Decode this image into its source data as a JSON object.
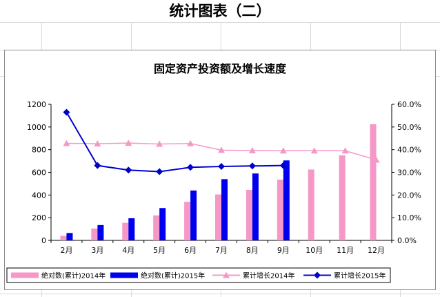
{
  "sheet": {
    "title": "统计图表（二）"
  },
  "colors": {
    "bar2014": "#f598c8",
    "bar2015": "#0000ee",
    "line2014": "#f598c8",
    "line2015": "#0000cc",
    "axis": "#000000"
  },
  "chart_data": {
    "type": "bar",
    "title": "固定资产投资额及增长速度",
    "categories": [
      "2月",
      "3月",
      "4月",
      "5月",
      "6月",
      "7月",
      "8月",
      "9月",
      "10月",
      "11月",
      "12月"
    ],
    "y_left": {
      "range": [
        0,
        1200
      ],
      "ticks": [
        "0",
        "200",
        "400",
        "600",
        "800",
        "1000",
        "1200"
      ]
    },
    "y_right": {
      "range": [
        0,
        60
      ],
      "ticks": [
        "0.0%",
        "10.0%",
        "20.0%",
        "30.0%",
        "40.0%",
        "50.0%",
        "60.0%"
      ]
    },
    "grid": false,
    "legend_position": "bottom",
    "series": [
      {
        "name": "绝对数(累计)2014年",
        "kind": "bar",
        "axis": "left",
        "values": [
          40,
          105,
          155,
          220,
          340,
          405,
          445,
          535,
          625,
          750,
          1025
        ]
      },
      {
        "name": "绝对数(累计)2015年",
        "kind": "bar",
        "axis": "left",
        "values": [
          65,
          135,
          195,
          285,
          440,
          540,
          590,
          705,
          null,
          null,
          null
        ]
      },
      {
        "name": "累计增长2014年",
        "kind": "line",
        "marker": "triangle",
        "axis": "right",
        "values": [
          42.8,
          42.6,
          42.9,
          42.5,
          42.7,
          39.8,
          39.6,
          39.5,
          39.5,
          39.5,
          35.5
        ]
      },
      {
        "name": "累计增长2015年",
        "kind": "line",
        "marker": "diamond",
        "axis": "right",
        "values": [
          56.5,
          33.0,
          31.0,
          30.3,
          32.2,
          32.6,
          32.8,
          33.0,
          null,
          null,
          null
        ]
      }
    ]
  }
}
